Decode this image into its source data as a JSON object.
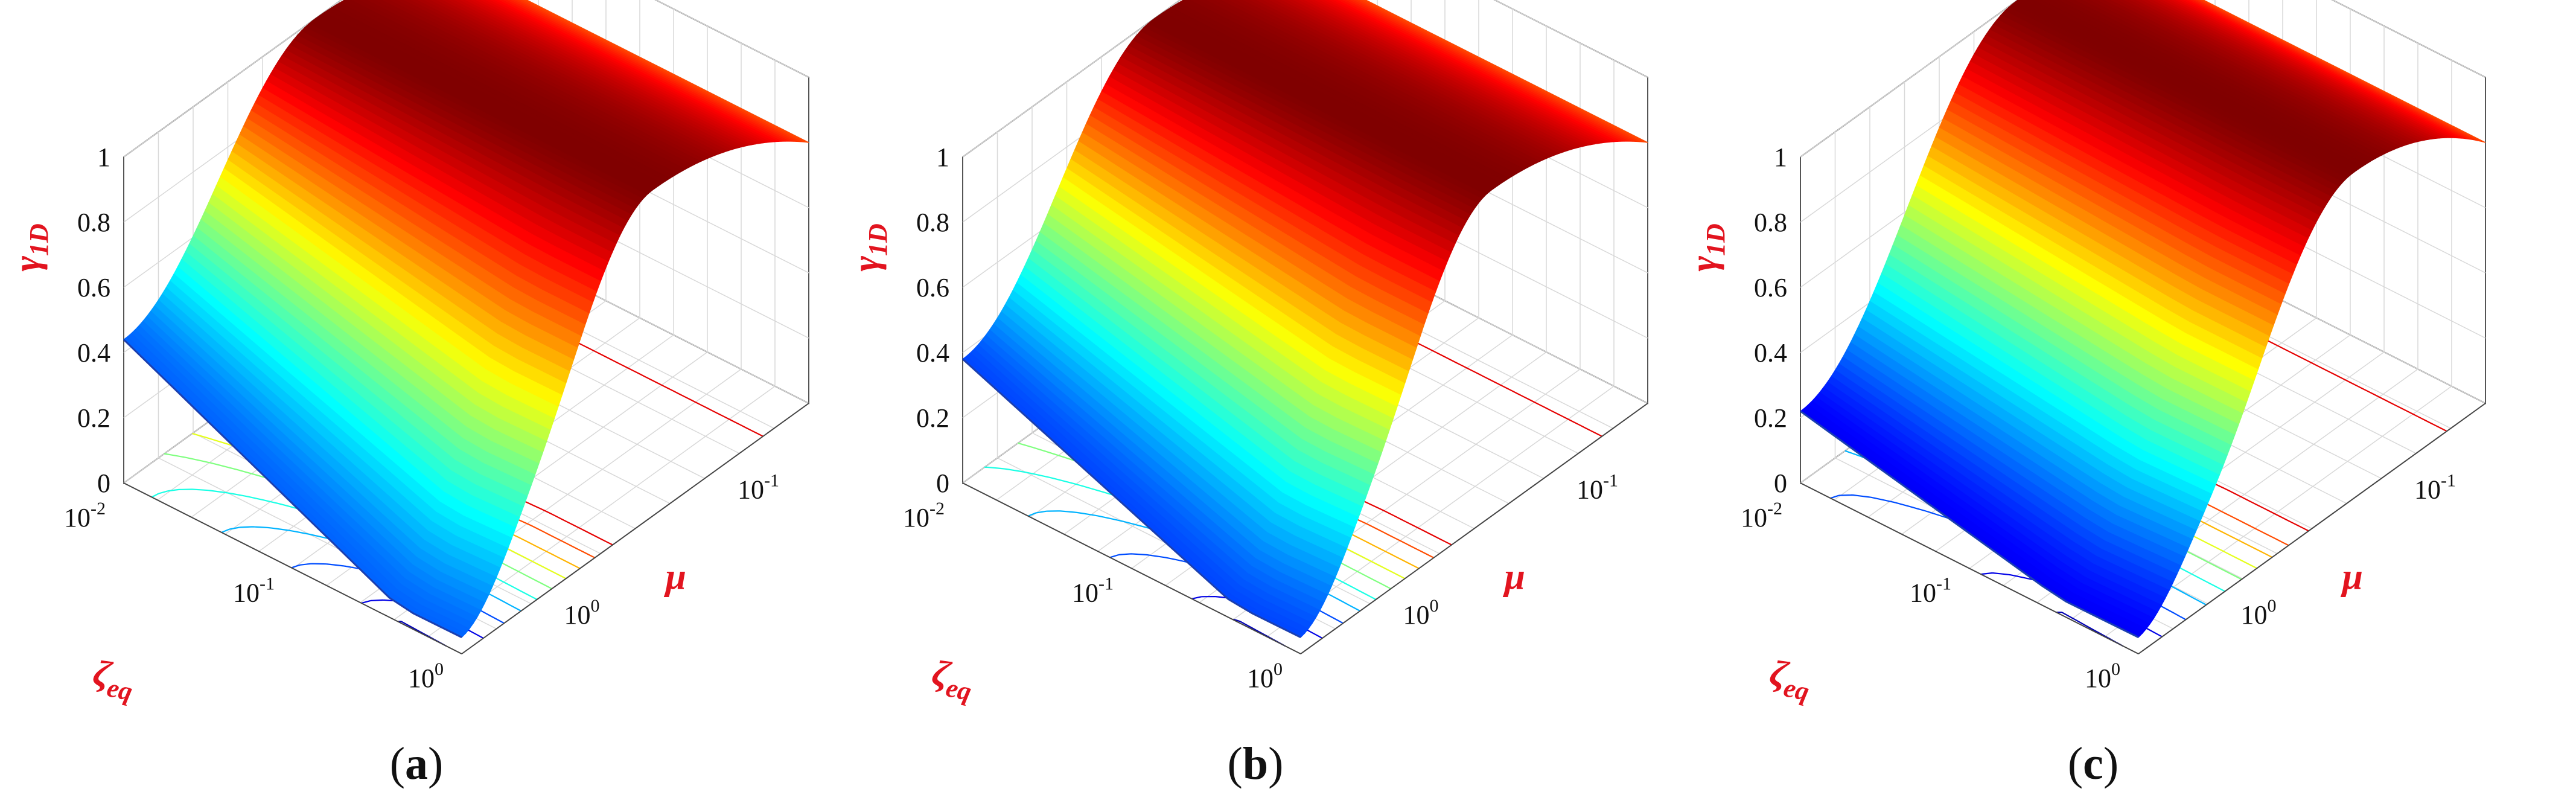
{
  "chart_data": [
    {
      "type": "surface3d",
      "panel_label": "a",
      "zlabel": "γ",
      "zlabel_sub": "1D",
      "ylabel": "ζ",
      "ylabel_sub": "eq",
      "xlabel": "μ",
      "z_ticks": [
        "0",
        "0.2",
        "0.4",
        "0.6",
        "0.8",
        "1"
      ],
      "zeta_ticks": [
        {
          "base": "10",
          "exp": "-2"
        },
        {
          "base": "10",
          "exp": "-1"
        },
        {
          "base": "10",
          "exp": "0"
        }
      ],
      "mu_ticks": [
        {
          "base": "10",
          "exp": "0"
        },
        {
          "base": "10",
          "exp": "-1"
        }
      ],
      "zlim": [
        0,
        1
      ],
      "zeta_range": [
        0.01,
        1
      ],
      "mu_range": [
        0.05,
        1.5
      ],
      "log_axes": [
        "zeta",
        "mu"
      ],
      "surface_at_min_zeta_max_mu": 0.42,
      "surface_min_value": 0.02,
      "surface_at_max_mu": 0.8,
      "surface_peak_value": 1.0,
      "colormap": "jet",
      "grid": true,
      "contours_on_floor": true
    },
    {
      "type": "surface3d",
      "panel_label": "b",
      "zlabel": "γ",
      "zlabel_sub": "1D",
      "ylabel": "ζ",
      "ylabel_sub": "eq",
      "xlabel": "μ",
      "z_ticks": [
        "0",
        "0.2",
        "0.4",
        "0.6",
        "0.8",
        "1"
      ],
      "zeta_ticks": [
        {
          "base": "10",
          "exp": "-2"
        },
        {
          "base": "10",
          "exp": "-1"
        },
        {
          "base": "10",
          "exp": "0"
        }
      ],
      "mu_ticks": [
        {
          "base": "10",
          "exp": "0"
        },
        {
          "base": "10",
          "exp": "-1"
        }
      ],
      "zlim": [
        0,
        1
      ],
      "zeta_range": [
        0.01,
        1
      ],
      "mu_range": [
        0.05,
        1.5
      ],
      "log_axes": [
        "zeta",
        "mu"
      ],
      "surface_at_min_zeta_max_mu": 0.36,
      "surface_min_value": 0.02,
      "surface_at_max_mu": 0.8,
      "surface_peak_value": 1.0,
      "colormap": "jet",
      "grid": true,
      "contours_on_floor": true
    },
    {
      "type": "surface3d",
      "panel_label": "c",
      "zlabel": "γ",
      "zlabel_sub": "1D",
      "ylabel": "ζ",
      "ylabel_sub": "eq",
      "xlabel": "μ",
      "z_ticks": [
        "0",
        "0.2",
        "0.4",
        "0.6",
        "0.8",
        "1"
      ],
      "zeta_ticks": [
        {
          "base": "10",
          "exp": "-2"
        },
        {
          "base": "10",
          "exp": "-1"
        },
        {
          "base": "10",
          "exp": "0"
        }
      ],
      "mu_ticks": [
        {
          "base": "10",
          "exp": "0"
        },
        {
          "base": "10",
          "exp": "-1"
        }
      ],
      "zlim": [
        0,
        1
      ],
      "zeta_range": [
        0.01,
        1
      ],
      "mu_range": [
        0.05,
        1.5
      ],
      "log_axes": [
        "zeta",
        "mu"
      ],
      "surface_at_min_zeta_max_mu": 0.2,
      "surface_min_value": 0.02,
      "surface_at_max_mu": 0.8,
      "surface_peak_value": 1.0,
      "colormap": "jet",
      "grid": true,
      "contours_on_floor": true
    }
  ]
}
